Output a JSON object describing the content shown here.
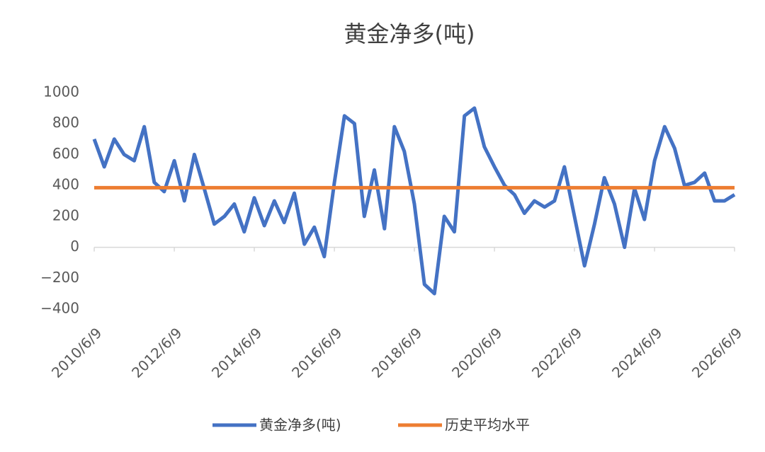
{
  "chart_data": {
    "type": "line",
    "title": "黄金净多(吨)",
    "x": [
      "2010/6/9",
      "2010/9/9",
      "2010/12/9",
      "2011/3/9",
      "2011/6/9",
      "2011/9/9",
      "2011/12/9",
      "2012/3/9",
      "2012/6/9",
      "2012/9/9",
      "2012/12/9",
      "2013/3/9",
      "2013/6/9",
      "2013/9/9",
      "2013/12/9",
      "2014/3/9",
      "2014/6/9",
      "2014/9/9",
      "2014/12/9",
      "2015/3/9",
      "2015/6/9",
      "2015/9/9",
      "2015/12/9",
      "2016/3/9",
      "2016/6/9",
      "2016/9/9",
      "2016/12/9",
      "2017/3/9",
      "2017/6/9",
      "2017/9/9",
      "2017/12/9",
      "2018/3/9",
      "2018/6/9",
      "2018/9/9",
      "2018/12/9",
      "2019/3/9",
      "2019/6/9",
      "2019/9/9",
      "2019/12/9",
      "2020/3/9",
      "2020/6/9",
      "2020/9/9",
      "2020/12/9",
      "2021/3/9",
      "2021/6/9",
      "2021/9/9",
      "2021/12/9",
      "2022/3/9",
      "2022/6/9",
      "2022/9/9",
      "2022/12/9",
      "2023/3/9",
      "2023/6/9",
      "2023/9/9",
      "2023/12/9",
      "2024/3/9",
      "2024/6/9",
      "2024/9/9",
      "2024/12/9",
      "2025/3/9",
      "2025/6/9",
      "2025/9/9",
      "2025/12/9",
      "2026/3/9",
      "2026/6/9"
    ],
    "series": [
      {
        "name": "黄金净多(吨)",
        "color": "#4472c4",
        "values": [
          700,
          520,
          700,
          600,
          560,
          780,
          420,
          360,
          560,
          300,
          600,
          380,
          150,
          200,
          280,
          100,
          320,
          140,
          300,
          160,
          350,
          20,
          130,
          -60,
          420,
          850,
          800,
          200,
          500,
          120,
          780,
          620,
          280,
          -240,
          -300,
          200,
          100,
          850,
          900,
          650,
          520,
          400,
          340,
          220,
          300,
          260,
          300,
          520,
          200,
          -120,
          150,
          450,
          280,
          0,
          380,
          180,
          560,
          780,
          640,
          400,
          420,
          480,
          300,
          300,
          340
        ]
      },
      {
        "name": "历史平均水平",
        "color": "#ed7d31",
        "values": [
          385,
          385,
          385,
          385,
          385,
          385,
          385,
          385,
          385,
          385,
          385,
          385,
          385,
          385,
          385,
          385,
          385,
          385,
          385,
          385,
          385,
          385,
          385,
          385,
          385,
          385,
          385,
          385,
          385,
          385,
          385,
          385,
          385,
          385,
          385,
          385,
          385,
          385,
          385,
          385,
          385,
          385,
          385,
          385,
          385,
          385,
          385,
          385,
          385,
          385,
          385,
          385,
          385,
          385,
          385,
          385,
          385,
          385,
          385,
          385,
          385,
          385,
          385,
          385,
          385
        ]
      }
    ],
    "ylim": [
      -400,
      1000
    ],
    "yticks": [
      {
        "value": -400,
        "label": "−400"
      },
      {
        "value": -200,
        "label": "−200"
      },
      0,
      200,
      400,
      600,
      800,
      1000
    ],
    "xlim": [
      "2010/6/9",
      "2026/6/9"
    ],
    "xticks": [
      "2010/6/9",
      "2012/6/9",
      "2014/6/9",
      "2016/6/9",
      "2018/6/9",
      "2020/6/9",
      "2022/6/9",
      "2024/6/9",
      "2026/6/9"
    ]
  }
}
